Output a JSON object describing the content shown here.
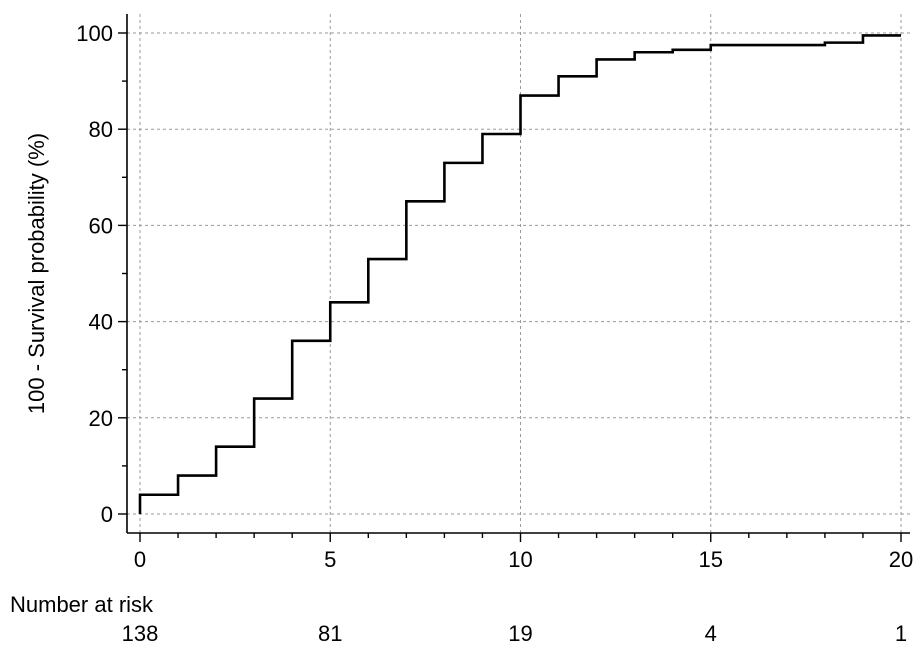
{
  "chart_data": {
    "type": "line",
    "step": true,
    "title": "",
    "xlabel": "",
    "ylabel": "100 - Survival probability (%)",
    "xlim": [
      0,
      20
    ],
    "ylim": [
      0,
      100
    ],
    "xticks": [
      0,
      5,
      10,
      15,
      20
    ],
    "yticks": [
      0,
      20,
      40,
      60,
      80,
      100
    ],
    "grid": true,
    "series": [
      {
        "x": [
          0,
          1,
          2,
          3,
          4,
          5,
          6,
          7,
          8,
          9,
          10,
          11,
          12,
          13,
          14,
          15,
          16,
          17,
          18,
          19,
          20
        ],
        "y": [
          4,
          8,
          14,
          24,
          36,
          44,
          53,
          65,
          73,
          79,
          87,
          91,
          94.5,
          96,
          96.5,
          97.5,
          97.5,
          97.5,
          98,
          99.5,
          99.5
        ]
      }
    ],
    "risk_table": {
      "title": "Number at risk",
      "x": [
        0,
        5,
        10,
        15,
        20
      ],
      "values": [
        "138",
        "81",
        "19",
        "4",
        "1"
      ]
    }
  }
}
